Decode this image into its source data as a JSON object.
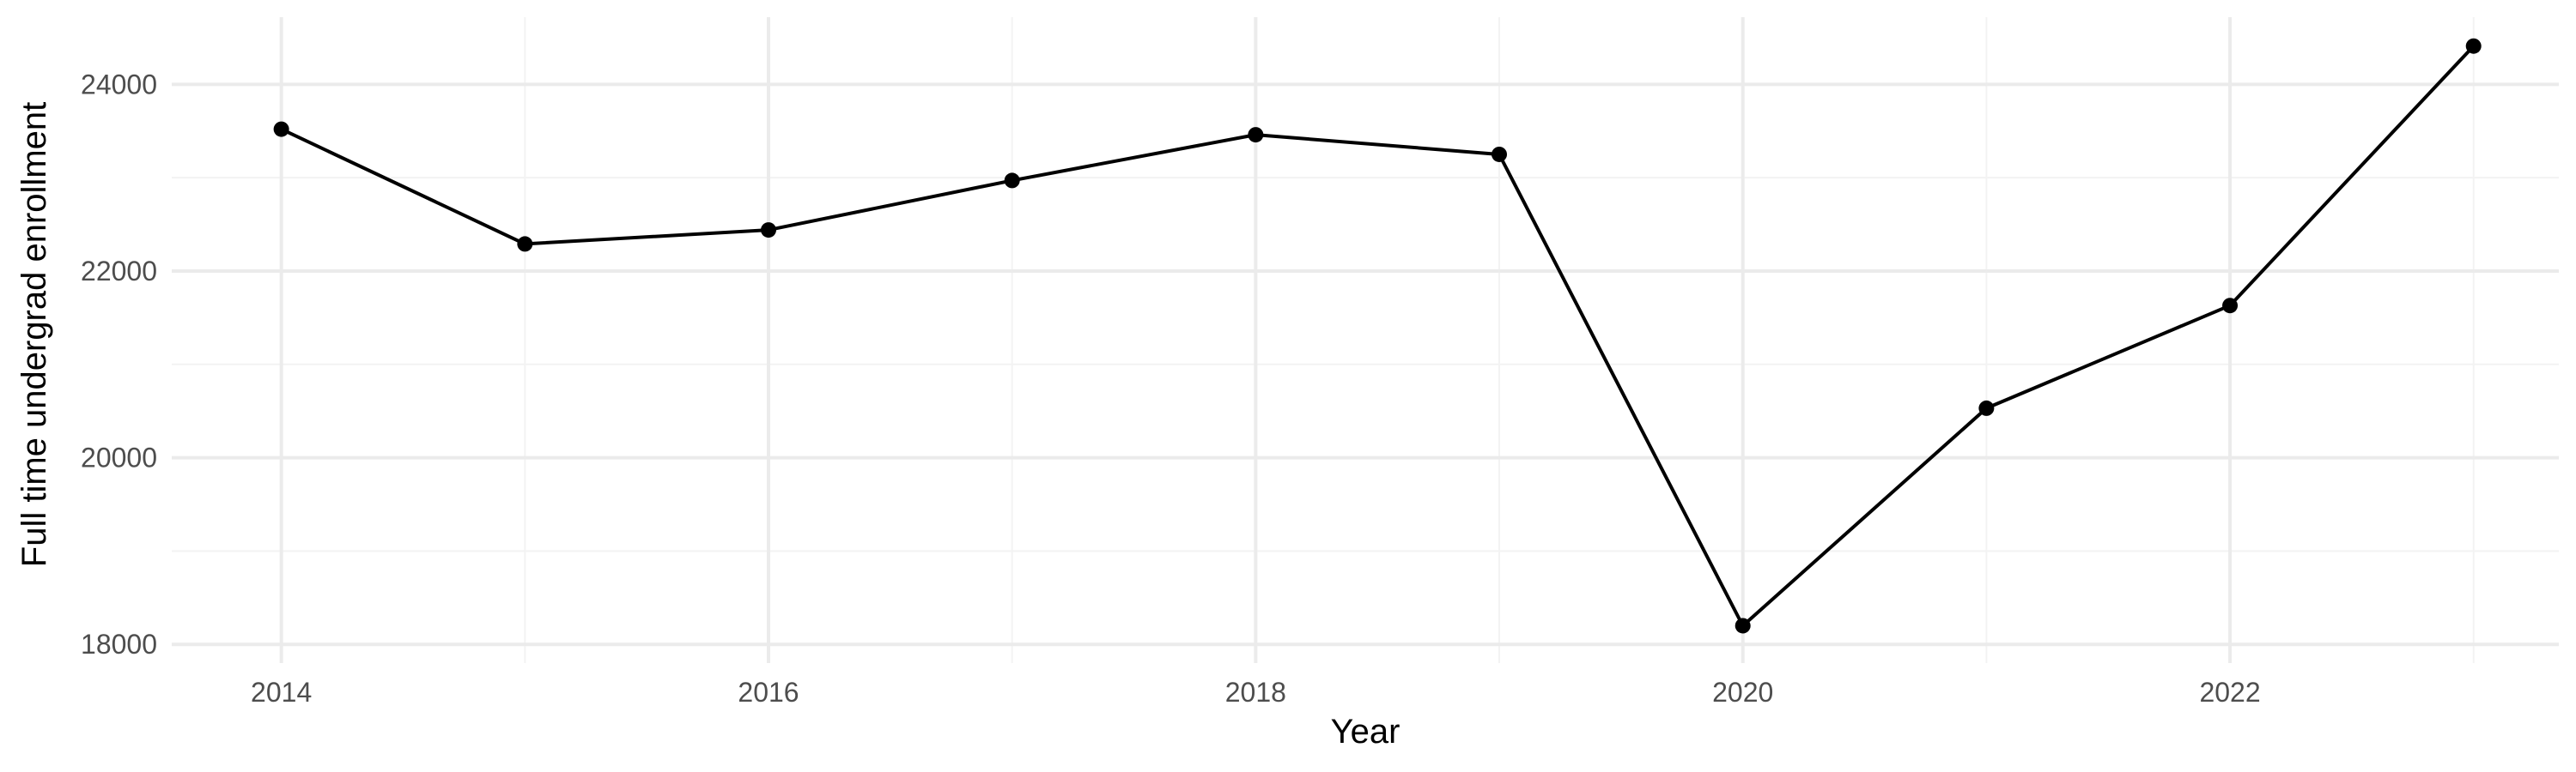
{
  "chart_data": {
    "type": "line",
    "title": "",
    "xlabel": "Year",
    "ylabel": "Full time undergrad enrollment",
    "x": [
      2014,
      2015,
      2016,
      2017,
      2018,
      2019,
      2020,
      2021,
      2022,
      2023
    ],
    "series": [
      {
        "values": [
          23520,
          22290,
          22440,
          22970,
          23460,
          23250,
          18200,
          20530,
          21630,
          24410
        ]
      }
    ],
    "xlim": [
      2013.55,
      2023.35
    ],
    "ylim": [
      17800,
      24720
    ],
    "x_major_ticks": [
      2014,
      2016,
      2018,
      2020,
      2022
    ],
    "x_minor_ticks": [
      2015,
      2017,
      2019,
      2021,
      2023
    ],
    "y_major_ticks": [
      18000,
      20000,
      22000,
      24000
    ],
    "y_minor_ticks": [
      19000,
      21000,
      23000
    ],
    "x_tick_labels": [
      "2014",
      "2016",
      "2018",
      "2020",
      "2022"
    ],
    "y_tick_labels": [
      "18000",
      "20000",
      "22000",
      "24000"
    ],
    "grid": true,
    "legend": "none",
    "colors": {
      "line": "#000000",
      "point": "#000000",
      "grid_major": "#ebebeb",
      "grid_minor": "#f3f3f3",
      "tick_text": "#4d4d4d"
    }
  }
}
